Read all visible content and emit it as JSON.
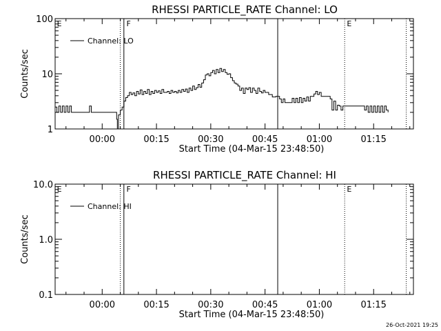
{
  "footer_timestamp": "26-Oct-2021 19:25",
  "chart_data": [
    {
      "type": "line",
      "title": "RHESSI PARTICLE_RATE Channel: LO",
      "xlabel": "Start Time (04-Mar-15 23:48:50)",
      "ylabel": "Counts/sec",
      "yscale": "log",
      "ylim": [
        1,
        100
      ],
      "y_ticks": [
        "1",
        "10",
        "100"
      ],
      "xlim_minutes": [
        -13,
        86
      ],
      "x_ticks": [
        "00:00",
        "00:15",
        "00:30",
        "00:45",
        "01:00",
        "01:15"
      ],
      "grid": false,
      "legend": {
        "location": "upper-left",
        "entries": [
          "Channel: LO"
        ]
      },
      "annotations": [
        "E",
        "F",
        "E"
      ],
      "series": [
        {
          "name": "Channel: LO",
          "points": [
            [
              -13,
              2.5
            ],
            [
              -12.5,
              2
            ],
            [
              -12,
              2.6
            ],
            [
              -11.5,
              2
            ],
            [
              -11,
              2.6
            ],
            [
              -10.5,
              2
            ],
            [
              -10,
              2.6
            ],
            [
              -9.5,
              2
            ],
            [
              -9,
              2.6
            ],
            [
              -8.5,
              2
            ],
            [
              -8,
              2
            ],
            [
              -4,
              2
            ],
            [
              -3.5,
              2.6
            ],
            [
              -3,
              2
            ],
            [
              1,
              2
            ],
            [
              3.8,
              2
            ],
            [
              4,
              1.5
            ],
            [
              4.2,
              1
            ],
            [
              4.5,
              1.8
            ],
            [
              5,
              2.2
            ],
            [
              5.5,
              2.5
            ],
            [
              6,
              3.2
            ],
            [
              6.5,
              3.7
            ],
            [
              7,
              4
            ],
            [
              7.5,
              4.6
            ],
            [
              8,
              4.2
            ],
            [
              8.5,
              4.5
            ],
            [
              9,
              4
            ],
            [
              9.5,
              4.8
            ],
            [
              10,
              4.3
            ],
            [
              10.5,
              5.1
            ],
            [
              11,
              4.2
            ],
            [
              11.5,
              4.8
            ],
            [
              12,
              4.4
            ],
            [
              12.5,
              5.2
            ],
            [
              13,
              4.2
            ],
            [
              13.5,
              4.8
            ],
            [
              14,
              4.4
            ],
            [
              14.5,
              5
            ],
            [
              15,
              4.6
            ],
            [
              15.5,
              4.9
            ],
            [
              16,
              4.4
            ],
            [
              16.5,
              5.2
            ],
            [
              17,
              4.6
            ],
            [
              18,
              4.8
            ],
            [
              18.5,
              4.4
            ],
            [
              19,
              5
            ],
            [
              19.5,
              4.6
            ],
            [
              20,
              4.8
            ],
            [
              20.5,
              4.5
            ],
            [
              21,
              5
            ],
            [
              21.5,
              4.6
            ],
            [
              22,
              5.2
            ],
            [
              22.5,
              4.8
            ],
            [
              23,
              5.3
            ],
            [
              23.5,
              4.6
            ],
            [
              24,
              5.5
            ],
            [
              24.5,
              5
            ],
            [
              25,
              6
            ],
            [
              25.5,
              5.2
            ],
            [
              26,
              5.6
            ],
            [
              26.5,
              6.4
            ],
            [
              27,
              5.7
            ],
            [
              27.5,
              6.8
            ],
            [
              28,
              7.8
            ],
            [
              28.5,
              9.5
            ],
            [
              29,
              10
            ],
            [
              29.5,
              9.2
            ],
            [
              30,
              10.5
            ],
            [
              30.5,
              11.5
            ],
            [
              31,
              10
            ],
            [
              31.5,
              12
            ],
            [
              32,
              10.5
            ],
            [
              32.5,
              12.5
            ],
            [
              33,
              11
            ],
            [
              33.5,
              12
            ],
            [
              34,
              10.5
            ],
            [
              34.5,
              9.8
            ],
            [
              35,
              10
            ],
            [
              35.5,
              8.5
            ],
            [
              36,
              7.5
            ],
            [
              36.5,
              6.8
            ],
            [
              37,
              6.5
            ],
            [
              37.5,
              6
            ],
            [
              38,
              5
            ],
            [
              38.5,
              5.5
            ],
            [
              39,
              4.4
            ],
            [
              39.5,
              5.5
            ],
            [
              40,
              5.2
            ],
            [
              40.5,
              5.6
            ],
            [
              41,
              4.6
            ],
            [
              41.5,
              5.5
            ],
            [
              42,
              5
            ],
            [
              42.5,
              4.4
            ],
            [
              43,
              5.5
            ],
            [
              43.5,
              4.8
            ],
            [
              44,
              4.5
            ],
            [
              44.5,
              5
            ],
            [
              45,
              4.6
            ],
            [
              46,
              4.2
            ],
            [
              47,
              3.8
            ],
            [
              48,
              3.9
            ],
            [
              49,
              3.5
            ],
            [
              49.5,
              3
            ],
            [
              50,
              3.5
            ],
            [
              50.5,
              3
            ],
            [
              51,
              3
            ],
            [
              52,
              3
            ],
            [
              52.5,
              3.6
            ],
            [
              53,
              3
            ],
            [
              53.5,
              3.6
            ],
            [
              54,
              3
            ],
            [
              54.5,
              3.7
            ],
            [
              55,
              3
            ],
            [
              55.5,
              3.6
            ],
            [
              56,
              3.2
            ],
            [
              56.5,
              3.8
            ],
            [
              57,
              3.2
            ],
            [
              57.5,
              3.9
            ],
            [
              58,
              3.9
            ],
            [
              58.5,
              4.3
            ],
            [
              59,
              4.8
            ],
            [
              59.5,
              4.2
            ],
            [
              60,
              4.6
            ],
            [
              60.5,
              3.9
            ],
            [
              61,
              3.9
            ],
            [
              62,
              3.9
            ],
            [
              62.5,
              3.9
            ],
            [
              63,
              3.5
            ],
            [
              63.5,
              2.2
            ],
            [
              64,
              3.2
            ],
            [
              64.5,
              2.2
            ],
            [
              65,
              2.7
            ],
            [
              65.5,
              2.6
            ],
            [
              66,
              2.2
            ],
            [
              66.5,
              2.6
            ],
            [
              67,
              2.6
            ],
            [
              67.5,
              2.6
            ],
            [
              68,
              2.6
            ],
            [
              70,
              2.6
            ],
            [
              71,
              2.6
            ],
            [
              72,
              2.6
            ],
            [
              72.5,
              2.2
            ],
            [
              73,
              2.6
            ],
            [
              73.5,
              2
            ],
            [
              74,
              2.6
            ],
            [
              74.5,
              2
            ],
            [
              75,
              2.6
            ],
            [
              75.5,
              2
            ],
            [
              76,
              2.6
            ],
            [
              76.5,
              2
            ],
            [
              77,
              2.6
            ],
            [
              77.5,
              2
            ],
            [
              78,
              2.6
            ],
            [
              78.5,
              2.2
            ],
            [
              79,
              2
            ]
          ]
        }
      ]
    },
    {
      "type": "line",
      "title": "RHESSI PARTICLE_RATE Channel: HI",
      "xlabel": "Start Time (04-Mar-15 23:48:50)",
      "ylabel": "Counts/sec",
      "yscale": "log",
      "ylim": [
        0.1,
        10
      ],
      "y_ticks": [
        "0.1",
        "1.0",
        "10.0"
      ],
      "xlim_minutes": [
        -13,
        86
      ],
      "x_ticks": [
        "00:00",
        "00:15",
        "00:30",
        "00:45",
        "01:00",
        "01:15"
      ],
      "grid": false,
      "legend": {
        "location": "upper-left",
        "entries": [
          "Channel: HI"
        ]
      },
      "annotations": [
        "E",
        "F",
        "E"
      ],
      "series": [
        {
          "name": "Channel: HI",
          "points": []
        }
      ]
    }
  ]
}
